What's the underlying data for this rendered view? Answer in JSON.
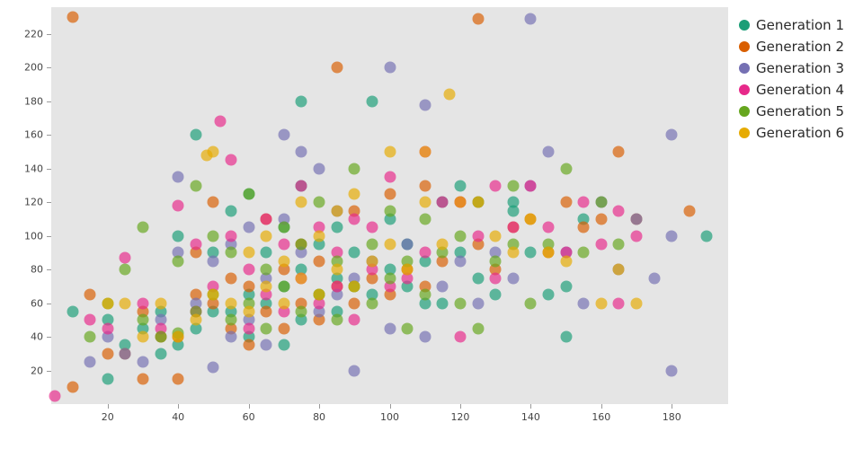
{
  "chart_data": {
    "type": "scatter",
    "title": "",
    "xlabel": "",
    "ylabel": "",
    "xlim": [
      4,
      196
    ],
    "ylim": [
      0,
      236
    ],
    "x_ticks": [
      20,
      40,
      60,
      80,
      100,
      120,
      140,
      160,
      180
    ],
    "y_ticks": [
      20,
      40,
      60,
      80,
      100,
      120,
      140,
      160,
      180,
      200,
      220
    ],
    "grid": false,
    "panel_background": "#e5e5e5",
    "marker_opacity": 0.68,
    "legend_position": "right",
    "series": [
      {
        "name": "Generation 1",
        "color": "#1b9e77",
        "points": [
          [
            10,
            55
          ],
          [
            20,
            15
          ],
          [
            20,
            50
          ],
          [
            25,
            35
          ],
          [
            30,
            45
          ],
          [
            35,
            30
          ],
          [
            35,
            55
          ],
          [
            40,
            35
          ],
          [
            40,
            100
          ],
          [
            45,
            45
          ],
          [
            45,
            160
          ],
          [
            50,
            55
          ],
          [
            50,
            90
          ],
          [
            55,
            55
          ],
          [
            55,
            115
          ],
          [
            60,
            40
          ],
          [
            60,
            65
          ],
          [
            60,
            125
          ],
          [
            65,
            60
          ],
          [
            65,
            90
          ],
          [
            70,
            35
          ],
          [
            70,
            70
          ],
          [
            70,
            105
          ],
          [
            75,
            50
          ],
          [
            75,
            80
          ],
          [
            75,
            130
          ],
          [
            75,
            180
          ],
          [
            80,
            65
          ],
          [
            80,
            95
          ],
          [
            85,
            55
          ],
          [
            85,
            75
          ],
          [
            85,
            105
          ],
          [
            90,
            70
          ],
          [
            90,
            90
          ],
          [
            95,
            65
          ],
          [
            95,
            180
          ],
          [
            100,
            80
          ],
          [
            100,
            110
          ],
          [
            105,
            70
          ],
          [
            105,
            95
          ],
          [
            110,
            60
          ],
          [
            110,
            85
          ],
          [
            115,
            60
          ],
          [
            115,
            120
          ],
          [
            120,
            90
          ],
          [
            120,
            130
          ],
          [
            125,
            75
          ],
          [
            130,
            65
          ],
          [
            135,
            115
          ],
          [
            135,
            120
          ],
          [
            140,
            90
          ],
          [
            145,
            65
          ],
          [
            150,
            40
          ],
          [
            150,
            70
          ],
          [
            155,
            110
          ],
          [
            190,
            100
          ]
        ]
      },
      {
        "name": "Generation 2",
        "color": "#d95f02",
        "points": [
          [
            10,
            10
          ],
          [
            10,
            230
          ],
          [
            15,
            65
          ],
          [
            20,
            30
          ],
          [
            25,
            30
          ],
          [
            30,
            15
          ],
          [
            30,
            55
          ],
          [
            35,
            40
          ],
          [
            40,
            15
          ],
          [
            40,
            40
          ],
          [
            45,
            65
          ],
          [
            45,
            90
          ],
          [
            50,
            60
          ],
          [
            50,
            120
          ],
          [
            55,
            45
          ],
          [
            55,
            75
          ],
          [
            60,
            35
          ],
          [
            60,
            70
          ],
          [
            65,
            55
          ],
          [
            65,
            110
          ],
          [
            70,
            45
          ],
          [
            70,
            80
          ],
          [
            75,
            60
          ],
          [
            75,
            95
          ],
          [
            80,
            50
          ],
          [
            80,
            85
          ],
          [
            85,
            70
          ],
          [
            85,
            200
          ],
          [
            90,
            60
          ],
          [
            90,
            115
          ],
          [
            95,
            75
          ],
          [
            100,
            65
          ],
          [
            100,
            125
          ],
          [
            105,
            80
          ],
          [
            110,
            70
          ],
          [
            110,
            130
          ],
          [
            115,
            85
          ],
          [
            120,
            120
          ],
          [
            125,
            95
          ],
          [
            125,
            229
          ],
          [
            130,
            80
          ],
          [
            135,
            105
          ],
          [
            140,
            110
          ],
          [
            145,
            90
          ],
          [
            150,
            120
          ],
          [
            155,
            105
          ],
          [
            160,
            110
          ],
          [
            165,
            150
          ],
          [
            170,
            110
          ],
          [
            185,
            115
          ]
        ]
      },
      {
        "name": "Generation 3",
        "color": "#7570b3",
        "points": [
          [
            15,
            25
          ],
          [
            20,
            40
          ],
          [
            25,
            30
          ],
          [
            30,
            25
          ],
          [
            35,
            50
          ],
          [
            40,
            90
          ],
          [
            40,
            135
          ],
          [
            45,
            60
          ],
          [
            50,
            22
          ],
          [
            50,
            85
          ],
          [
            55,
            40
          ],
          [
            55,
            95
          ],
          [
            60,
            50
          ],
          [
            60,
            105
          ],
          [
            65,
            35
          ],
          [
            65,
            75
          ],
          [
            70,
            110
          ],
          [
            70,
            160
          ],
          [
            75,
            90
          ],
          [
            75,
            150
          ],
          [
            80,
            55
          ],
          [
            80,
            140
          ],
          [
            85,
            65
          ],
          [
            85,
            115
          ],
          [
            90,
            20
          ],
          [
            90,
            75
          ],
          [
            95,
            85
          ],
          [
            100,
            45
          ],
          [
            100,
            200
          ],
          [
            105,
            95
          ],
          [
            110,
            40
          ],
          [
            110,
            178
          ],
          [
            115,
            70
          ],
          [
            120,
            85
          ],
          [
            125,
            60
          ],
          [
            125,
            120
          ],
          [
            130,
            90
          ],
          [
            135,
            75
          ],
          [
            140,
            130
          ],
          [
            140,
            229
          ],
          [
            145,
            150
          ],
          [
            150,
            90
          ],
          [
            155,
            60
          ],
          [
            160,
            120
          ],
          [
            165,
            80
          ],
          [
            170,
            110
          ],
          [
            175,
            75
          ],
          [
            180,
            20
          ],
          [
            180,
            100
          ],
          [
            180,
            160
          ]
        ]
      },
      {
        "name": "Generation 4",
        "color": "#e7298a",
        "points": [
          [
            5,
            5
          ],
          [
            15,
            50
          ],
          [
            20,
            45
          ],
          [
            25,
            87
          ],
          [
            30,
            60
          ],
          [
            35,
            45
          ],
          [
            40,
            118
          ],
          [
            45,
            55
          ],
          [
            45,
            95
          ],
          [
            50,
            70
          ],
          [
            52,
            168
          ],
          [
            55,
            100
          ],
          [
            55,
            145
          ],
          [
            60,
            45
          ],
          [
            60,
            80
          ],
          [
            65,
            65
          ],
          [
            65,
            110
          ],
          [
            70,
            55
          ],
          [
            70,
            95
          ],
          [
            75,
            75
          ],
          [
            75,
            130
          ],
          [
            80,
            60
          ],
          [
            80,
            105
          ],
          [
            85,
            70
          ],
          [
            85,
            90
          ],
          [
            90,
            50
          ],
          [
            90,
            110
          ],
          [
            95,
            80
          ],
          [
            95,
            105
          ],
          [
            100,
            70
          ],
          [
            100,
            135
          ],
          [
            105,
            75
          ],
          [
            110,
            90
          ],
          [
            110,
            150
          ],
          [
            115,
            120
          ],
          [
            120,
            40
          ],
          [
            120,
            120
          ],
          [
            125,
            100
          ],
          [
            130,
            75
          ],
          [
            130,
            130
          ],
          [
            135,
            105
          ],
          [
            140,
            130
          ],
          [
            145,
            105
          ],
          [
            150,
            90
          ],
          [
            155,
            120
          ],
          [
            160,
            95
          ],
          [
            165,
            60
          ],
          [
            165,
            115
          ],
          [
            170,
            100
          ]
        ]
      },
      {
        "name": "Generation 5",
        "color": "#66a61e",
        "points": [
          [
            15,
            40
          ],
          [
            20,
            60
          ],
          [
            25,
            80
          ],
          [
            30,
            50
          ],
          [
            30,
            105
          ],
          [
            35,
            40
          ],
          [
            40,
            42
          ],
          [
            40,
            85
          ],
          [
            45,
            55
          ],
          [
            45,
            130
          ],
          [
            50,
            65
          ],
          [
            50,
            100
          ],
          [
            55,
            50
          ],
          [
            55,
            90
          ],
          [
            60,
            60
          ],
          [
            60,
            125
          ],
          [
            65,
            45
          ],
          [
            65,
            80
          ],
          [
            70,
            70
          ],
          [
            70,
            105
          ],
          [
            75,
            55
          ],
          [
            75,
            95
          ],
          [
            80,
            65
          ],
          [
            80,
            120
          ],
          [
            85,
            50
          ],
          [
            85,
            85
          ],
          [
            90,
            70
          ],
          [
            90,
            140
          ],
          [
            95,
            60
          ],
          [
            95,
            95
          ],
          [
            100,
            75
          ],
          [
            100,
            115
          ],
          [
            105,
            45
          ],
          [
            105,
            85
          ],
          [
            110,
            65
          ],
          [
            110,
            110
          ],
          [
            115,
            90
          ],
          [
            120,
            60
          ],
          [
            120,
            100
          ],
          [
            125,
            45
          ],
          [
            125,
            120
          ],
          [
            130,
            85
          ],
          [
            135,
            95
          ],
          [
            135,
            130
          ],
          [
            140,
            60
          ],
          [
            145,
            95
          ],
          [
            150,
            140
          ],
          [
            155,
            90
          ],
          [
            160,
            120
          ],
          [
            165,
            95
          ]
        ]
      },
      {
        "name": "Generation 6",
        "color": "#e6ab02",
        "points": [
          [
            20,
            60
          ],
          [
            25,
            60
          ],
          [
            30,
            40
          ],
          [
            35,
            60
          ],
          [
            40,
            40
          ],
          [
            45,
            50
          ],
          [
            48,
            148
          ],
          [
            50,
            65
          ],
          [
            50,
            150
          ],
          [
            55,
            60
          ],
          [
            60,
            55
          ],
          [
            60,
            90
          ],
          [
            65,
            70
          ],
          [
            65,
            100
          ],
          [
            70,
            60
          ],
          [
            70,
            85
          ],
          [
            75,
            75
          ],
          [
            75,
            120
          ],
          [
            80,
            65
          ],
          [
            80,
            100
          ],
          [
            85,
            80
          ],
          [
            85,
            115
          ],
          [
            90,
            70
          ],
          [
            90,
            125
          ],
          [
            95,
            85
          ],
          [
            100,
            95
          ],
          [
            100,
            150
          ],
          [
            105,
            80
          ],
          [
            110,
            120
          ],
          [
            110,
            150
          ],
          [
            115,
            95
          ],
          [
            117,
            184
          ],
          [
            120,
            120
          ],
          [
            125,
            120
          ],
          [
            130,
            100
          ],
          [
            135,
            90
          ],
          [
            140,
            110
          ],
          [
            145,
            90
          ],
          [
            150,
            85
          ],
          [
            160,
            60
          ],
          [
            165,
            80
          ],
          [
            170,
            60
          ]
        ]
      }
    ]
  },
  "legend": {
    "items": [
      {
        "label": "Generation 1",
        "color": "#1b9e77"
      },
      {
        "label": "Generation 2",
        "color": "#d95f02"
      },
      {
        "label": "Generation 3",
        "color": "#7570b3"
      },
      {
        "label": "Generation 4",
        "color": "#e7298a"
      },
      {
        "label": "Generation 5",
        "color": "#66a61e"
      },
      {
        "label": "Generation 6",
        "color": "#e6ab02"
      }
    ]
  }
}
